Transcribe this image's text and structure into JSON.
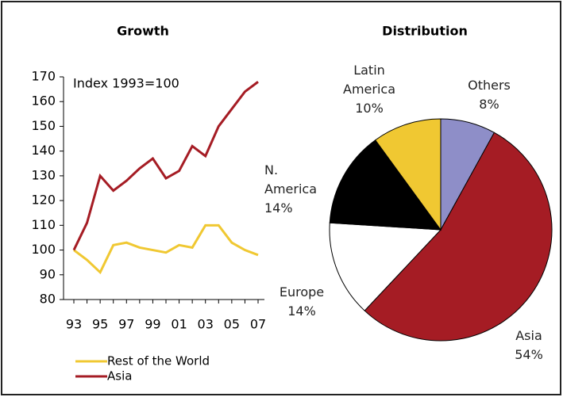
{
  "chart_data": [
    {
      "type": "line",
      "title": "Growth",
      "annotation": "Index 1993=100",
      "categories": [
        "93",
        null,
        "95",
        null,
        "97",
        null,
        "99",
        null,
        "01",
        null,
        "03",
        null,
        "05",
        null,
        "07"
      ],
      "series": [
        {
          "name": "Rest of the World",
          "color": "#f0c832",
          "values": [
            100,
            96,
            91,
            102,
            103,
            101,
            100,
            99,
            102,
            101,
            110,
            110,
            103,
            100,
            98
          ]
        },
        {
          "name": "Asia",
          "color": "#a51c24",
          "values": [
            100,
            111,
            130,
            124,
            128,
            133,
            137,
            129,
            132,
            142,
            138,
            150,
            157,
            164,
            168
          ]
        }
      ],
      "ylim": [
        80,
        170
      ],
      "yticks": [
        80,
        90,
        100,
        110,
        120,
        130,
        140,
        150,
        160,
        170
      ],
      "legend": "bottom"
    },
    {
      "type": "pie",
      "title": "Distribution",
      "categories": [
        "Others",
        "Asia",
        "Europe",
        "N. America",
        "Latin America"
      ],
      "values": [
        8,
        54,
        14,
        14,
        10
      ],
      "value_labels": [
        "8%",
        "54%",
        "14%",
        "14%",
        "10%"
      ],
      "colors": [
        "#8e8ec8",
        "#a51c24",
        "#ffffff",
        "#000000",
        "#f0c832"
      ]
    }
  ]
}
